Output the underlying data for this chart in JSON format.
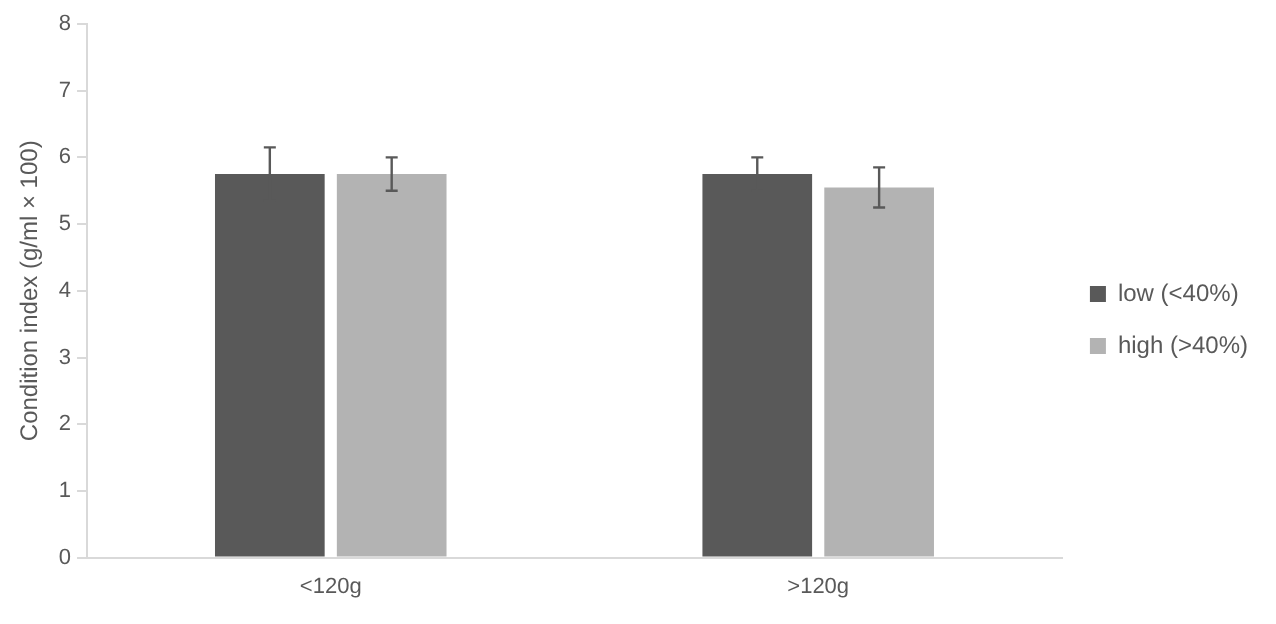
{
  "chart_data": {
    "type": "bar",
    "ylabel": "Condition index (g/ml × 100)",
    "categories": [
      "<120g",
      ">120g"
    ],
    "series": [
      {
        "name": "low (<40%)",
        "color": "#595959",
        "values": [
          5.75,
          5.75
        ],
        "errors": [
          0.4,
          0.25
        ]
      },
      {
        "name": "high (>40%)",
        "color": "#b3b3b3",
        "values": [
          5.75,
          5.55
        ],
        "errors": [
          0.25,
          0.3
        ]
      }
    ],
    "ylim": [
      0,
      8
    ],
    "yticks": [
      0,
      1,
      2,
      3,
      4,
      5,
      6,
      7,
      8
    ],
    "grid": false,
    "legend": "right"
  }
}
